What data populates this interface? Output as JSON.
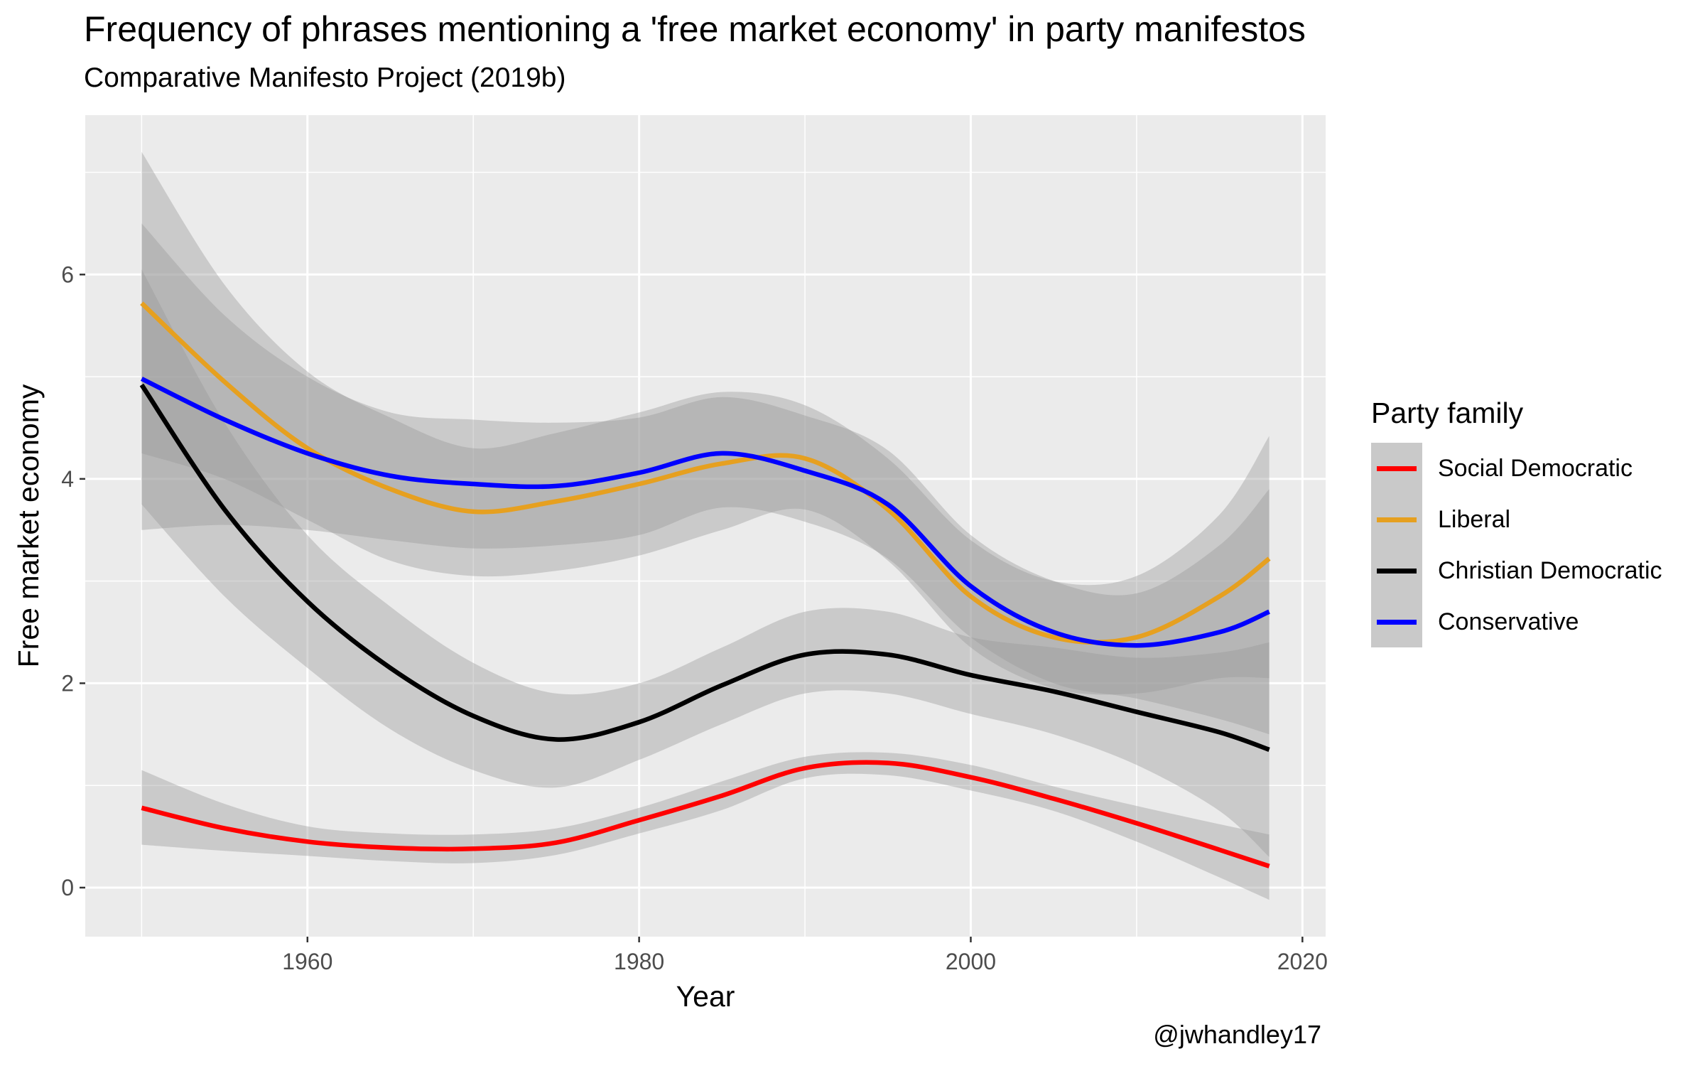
{
  "chart_data": {
    "type": "line",
    "title": "Frequency of phrases mentioning a 'free market economy' in party manifestos",
    "subtitle": "Comparative Manifesto Project (2019b)",
    "caption": "@jwhandley17",
    "xlabel": "Year",
    "ylabel": "Free market economy",
    "xlim": [
      1946.6,
      2021.4
    ],
    "ylim": [
      -0.48,
      7.56
    ],
    "xticks": [
      1960,
      1980,
      2000,
      2020
    ],
    "yticks": [
      0,
      2,
      4,
      6
    ],
    "grid": true,
    "legend_title": "Party family",
    "legend_position": "right",
    "x": [
      1950,
      1955,
      1960,
      1965,
      1970,
      1975,
      1980,
      1985,
      1990,
      1995,
      2000,
      2005,
      2010,
      2015,
      2018
    ],
    "series": [
      {
        "name": "Social Democratic",
        "color": "#ff0000",
        "values": [
          0.78,
          0.58,
          0.45,
          0.39,
          0.38,
          0.44,
          0.66,
          0.9,
          1.17,
          1.22,
          1.08,
          0.87,
          0.63,
          0.37,
          0.21
        ],
        "lower": [
          0.42,
          0.36,
          0.31,
          0.26,
          0.24,
          0.32,
          0.53,
          0.76,
          1.07,
          1.1,
          0.95,
          0.75,
          0.45,
          0.1,
          -0.12
        ],
        "upper": [
          1.15,
          0.82,
          0.6,
          0.53,
          0.52,
          0.58,
          0.78,
          1.04,
          1.28,
          1.32,
          1.2,
          0.99,
          0.8,
          0.62,
          0.52
        ]
      },
      {
        "name": "Liberal",
        "color": "#e6a020",
        "values": [
          5.72,
          4.95,
          4.3,
          3.9,
          3.68,
          3.78,
          3.95,
          4.15,
          4.2,
          3.7,
          2.85,
          2.45,
          2.45,
          2.85,
          3.22
        ],
        "lower": [
          4.25,
          4.0,
          3.6,
          3.2,
          3.05,
          3.1,
          3.25,
          3.5,
          3.7,
          3.2,
          2.35,
          1.95,
          1.9,
          2.05,
          2.05
        ],
        "upper": [
          7.2,
          5.9,
          5.05,
          4.6,
          4.3,
          4.45,
          4.65,
          4.85,
          4.72,
          4.2,
          3.4,
          3.0,
          3.05,
          3.65,
          4.42
        ]
      },
      {
        "name": "Christian Democratic",
        "color": "#000000",
        "values": [
          4.92,
          3.7,
          2.8,
          2.15,
          1.68,
          1.45,
          1.62,
          1.98,
          2.28,
          2.28,
          2.08,
          1.92,
          1.72,
          1.52,
          1.35
        ],
        "lower": [
          3.75,
          2.85,
          2.15,
          1.55,
          1.15,
          0.98,
          1.25,
          1.6,
          1.9,
          1.9,
          1.7,
          1.5,
          1.2,
          0.75,
          0.3
        ],
        "upper": [
          6.05,
          4.55,
          3.45,
          2.75,
          2.2,
          1.9,
          2.0,
          2.35,
          2.7,
          2.7,
          2.45,
          2.35,
          2.25,
          2.3,
          2.4
        ]
      },
      {
        "name": "Conservative",
        "color": "#0000ff",
        "values": [
          4.98,
          4.58,
          4.25,
          4.03,
          3.95,
          3.93,
          4.06,
          4.25,
          4.08,
          3.75,
          2.95,
          2.5,
          2.37,
          2.5,
          2.7
        ],
        "lower": [
          3.5,
          3.55,
          3.5,
          3.4,
          3.32,
          3.35,
          3.45,
          3.72,
          3.58,
          3.22,
          2.45,
          2.0,
          1.85,
          1.65,
          1.5
        ],
        "upper": [
          6.5,
          5.6,
          5.0,
          4.65,
          4.58,
          4.55,
          4.6,
          4.8,
          4.62,
          4.28,
          3.45,
          3.0,
          2.88,
          3.35,
          3.9
        ]
      }
    ]
  }
}
